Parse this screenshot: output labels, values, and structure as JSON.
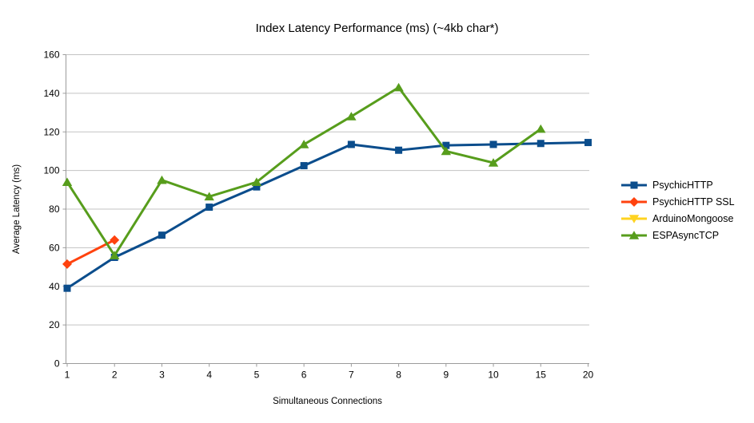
{
  "chart_data": {
    "type": "line",
    "title": "Index Latency Performance (ms) (~4kb char*)",
    "xlabel": "Simultaneous Connections",
    "ylabel": "Average Latency (ms)",
    "categories": [
      "1",
      "2",
      "3",
      "4",
      "5",
      "6",
      "7",
      "8",
      "9",
      "10",
      "15",
      "20"
    ],
    "ylim": [
      0,
      160
    ],
    "yticks": [
      0,
      20,
      40,
      60,
      80,
      100,
      120,
      140,
      160
    ],
    "grid": true,
    "legend_position": "right",
    "style": {
      "background": "#ffffff",
      "grid_color": "#c3c3c3",
      "axis_color": "#9b9b9b",
      "text_color": "#000000"
    },
    "series": [
      {
        "name": "PsychicHTTP",
        "color": "#0b4d8c",
        "marker": "square",
        "values": [
          39,
          55,
          66.5,
          81,
          91.5,
          102.5,
          113.5,
          110.5,
          113,
          113.5,
          114,
          114.5
        ]
      },
      {
        "name": "PsychicHTTP SSL",
        "color": "#ff420e",
        "marker": "diamond",
        "values": [
          51.5,
          64,
          null,
          null,
          null,
          null,
          null,
          null,
          null,
          null,
          null,
          null
        ]
      },
      {
        "name": "ArduinoMongoose",
        "color": "#ffd320",
        "marker": "triangle-down",
        "values": [
          null,
          null,
          null,
          null,
          null,
          null,
          null,
          null,
          null,
          null,
          null,
          null
        ]
      },
      {
        "name": "ESPAsyncTCP",
        "color": "#579d1c",
        "marker": "triangle-up",
        "values": [
          94,
          56,
          95,
          86.5,
          94,
          113.5,
          128,
          143,
          110,
          104,
          121.5,
          null
        ]
      }
    ]
  }
}
